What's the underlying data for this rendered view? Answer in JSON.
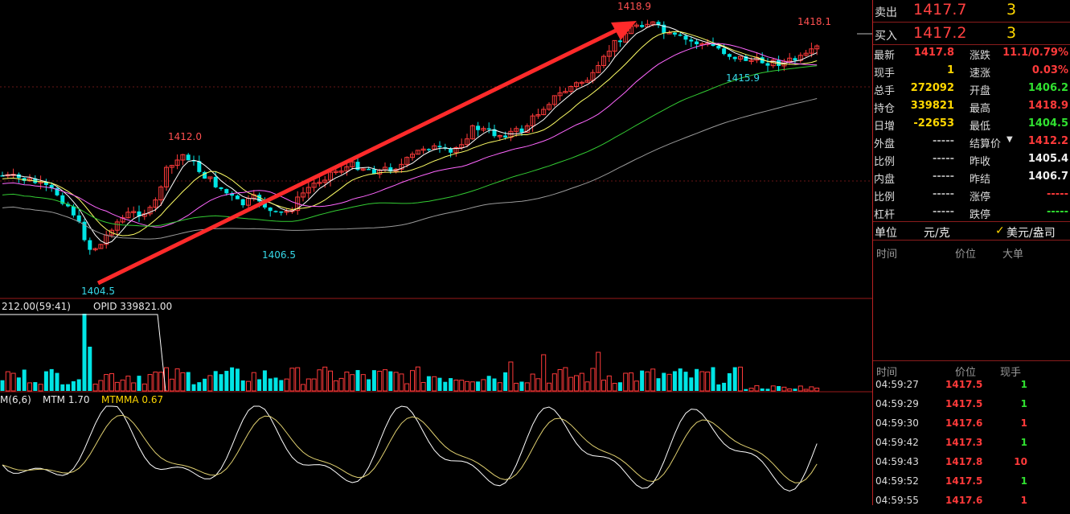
{
  "chart": {
    "price_annotations": {
      "high": "1418.9",
      "latest_high": "1418.1",
      "low": "1404.5",
      "low2": "1406.5",
      "peak1": "1412.0",
      "recent_low": "1415.9"
    },
    "volume_header": {
      "vol": "212.00(59:41)",
      "opid": "OPID 339821.00"
    },
    "mtm_header": {
      "name": "M(6,6)",
      "mtm": "MTM 1.70",
      "mtmma": "MTMMA 0.67"
    }
  },
  "quote": {
    "sell": {
      "label": "卖出",
      "price": "1417.7",
      "vol": "3"
    },
    "buy": {
      "label": "买入",
      "price": "1417.2",
      "vol": "3"
    }
  },
  "stats": {
    "left": [
      {
        "label": "最新",
        "value": "1417.8",
        "color": "red"
      },
      {
        "label": "现手",
        "value": "1",
        "color": "yellow"
      },
      {
        "label": "总手",
        "value": "272092",
        "color": "yellow"
      },
      {
        "label": "持仓",
        "value": "339821",
        "color": "yellow"
      },
      {
        "label": "日增",
        "value": "-22653",
        "color": "yellow"
      },
      {
        "label": "外盘",
        "value": "-----",
        "color": "grey"
      },
      {
        "label": "比例",
        "value": "-----",
        "color": "grey"
      },
      {
        "label": "内盘",
        "value": "-----",
        "color": "grey"
      },
      {
        "label": "比例",
        "value": "-----",
        "color": "grey"
      },
      {
        "label": "杠杆",
        "value": "-----",
        "color": "grey"
      }
    ],
    "right": [
      {
        "label": "涨跌",
        "value": "11.1/0.79%",
        "color": "red"
      },
      {
        "label": "速涨",
        "value": "0.03%",
        "color": "red"
      },
      {
        "label": "开盘",
        "value": "1406.2",
        "color": "green"
      },
      {
        "label": "最高",
        "value": "1418.9",
        "color": "red"
      },
      {
        "label": "最低",
        "value": "1404.5",
        "color": "green"
      },
      {
        "label": "结算价",
        "value": "1412.2",
        "color": "red"
      },
      {
        "label": "昨收",
        "value": "1405.4",
        "color": "white"
      },
      {
        "label": "昨结",
        "value": "1406.7",
        "color": "white"
      },
      {
        "label": "涨停",
        "value": "-----",
        "color": "red"
      },
      {
        "label": "跌停",
        "value": "-----",
        "color": "green"
      }
    ]
  },
  "unit": {
    "label": "单位",
    "value": "元/克",
    "alt": "美元/盎司"
  },
  "big_orders": {
    "col_time": "时间",
    "col_price": "价位",
    "col_big": "大单"
  },
  "ticks": {
    "col_time": "时间",
    "col_price": "价位",
    "col_qty": "现手",
    "rows": [
      {
        "time": "04:59:27",
        "price": "1417.5",
        "qty": "1",
        "qcolor": "green"
      },
      {
        "time": "04:59:29",
        "price": "1417.5",
        "qty": "1",
        "qcolor": "green"
      },
      {
        "time": "04:59:30",
        "price": "1417.6",
        "qty": "1",
        "qcolor": "red"
      },
      {
        "time": "04:59:42",
        "price": "1417.3",
        "qty": "1",
        "qcolor": "green"
      },
      {
        "time": "04:59:43",
        "price": "1417.8",
        "qty": "10",
        "qcolor": "red"
      },
      {
        "time": "04:59:52",
        "price": "1417.5",
        "qty": "1",
        "qcolor": "green"
      },
      {
        "time": "04:59:55",
        "price": "1417.6",
        "qty": "1",
        "qcolor": "red"
      }
    ]
  },
  "colors": {
    "up": "#ff3a3a",
    "down": "#00e5e5",
    "ma5": "#ffffff",
    "ma10": "#ffff66",
    "ma20": "#ff66ff",
    "ma40": "#33cc33",
    "ma60": "#9a9a9a",
    "arrow": "#ff2a2a"
  }
}
